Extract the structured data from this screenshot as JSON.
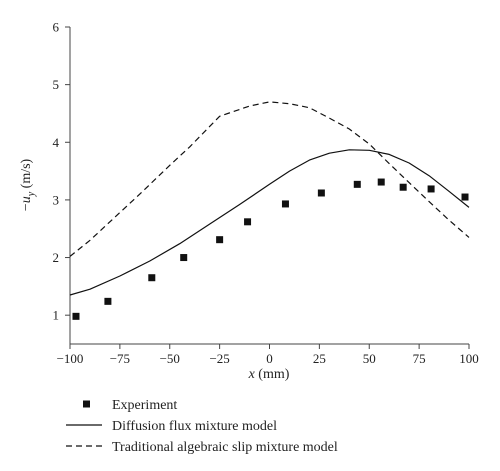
{
  "chart_data": {
    "type": "line",
    "xlabel": {
      "prefix": "",
      "var": "x",
      "unit": " (mm)"
    },
    "ylabel": {
      "prefix": "−",
      "var": "u",
      "sub": "y",
      "unit": " (m/s)"
    },
    "xlim": [
      -100,
      100
    ],
    "ylim": [
      0.5,
      6
    ],
    "x_ticks": [
      -100,
      -75,
      -50,
      -25,
      0,
      25,
      50,
      75,
      100
    ],
    "x_tick_labels": [
      "−100",
      "−75",
      "−50",
      "−25",
      "0",
      "25",
      "50",
      "75",
      "100"
    ],
    "y_ticks": [
      1,
      2,
      3,
      4,
      5,
      6
    ],
    "y_tick_labels": [
      "1",
      "2",
      "3",
      "4",
      "5",
      "6"
    ],
    "grid": false,
    "legend_position": "below-chart",
    "series": [
      {
        "name": "Experiment",
        "style": "square-markers",
        "color": "#111111",
        "x": [
          -97,
          -81,
          -59,
          -43,
          -25,
          -11,
          8,
          26,
          44,
          56,
          67,
          81,
          98
        ],
        "y": [
          0.98,
          1.24,
          1.65,
          2.0,
          2.31,
          2.62,
          2.93,
          3.12,
          3.27,
          3.31,
          3.22,
          3.19,
          3.05
        ]
      },
      {
        "name": "Diffusion flux mixture model",
        "style": "solid",
        "color": "#111111",
        "x": [
          -100,
          -90,
          -75,
          -60,
          -45,
          -30,
          -15,
          0,
          10,
          20,
          30,
          40,
          50,
          60,
          70,
          80,
          90,
          100
        ],
        "y": [
          1.35,
          1.45,
          1.68,
          1.94,
          2.24,
          2.58,
          2.92,
          3.27,
          3.5,
          3.69,
          3.81,
          3.87,
          3.86,
          3.79,
          3.64,
          3.42,
          3.15,
          2.87
        ]
      },
      {
        "name": "Traditional algebraic slip mixture model",
        "style": "dashed",
        "color": "#111111",
        "x": [
          -100,
          -90,
          -80,
          -65,
          -50,
          -40,
          -25,
          -10,
          0,
          10,
          20,
          30,
          40,
          50,
          60,
          70,
          80,
          90,
          100
        ],
        "y": [
          2.02,
          2.3,
          2.62,
          3.1,
          3.6,
          3.92,
          4.45,
          4.63,
          4.7,
          4.67,
          4.6,
          4.42,
          4.23,
          3.97,
          3.63,
          3.3,
          2.97,
          2.65,
          2.35
        ]
      }
    ]
  }
}
